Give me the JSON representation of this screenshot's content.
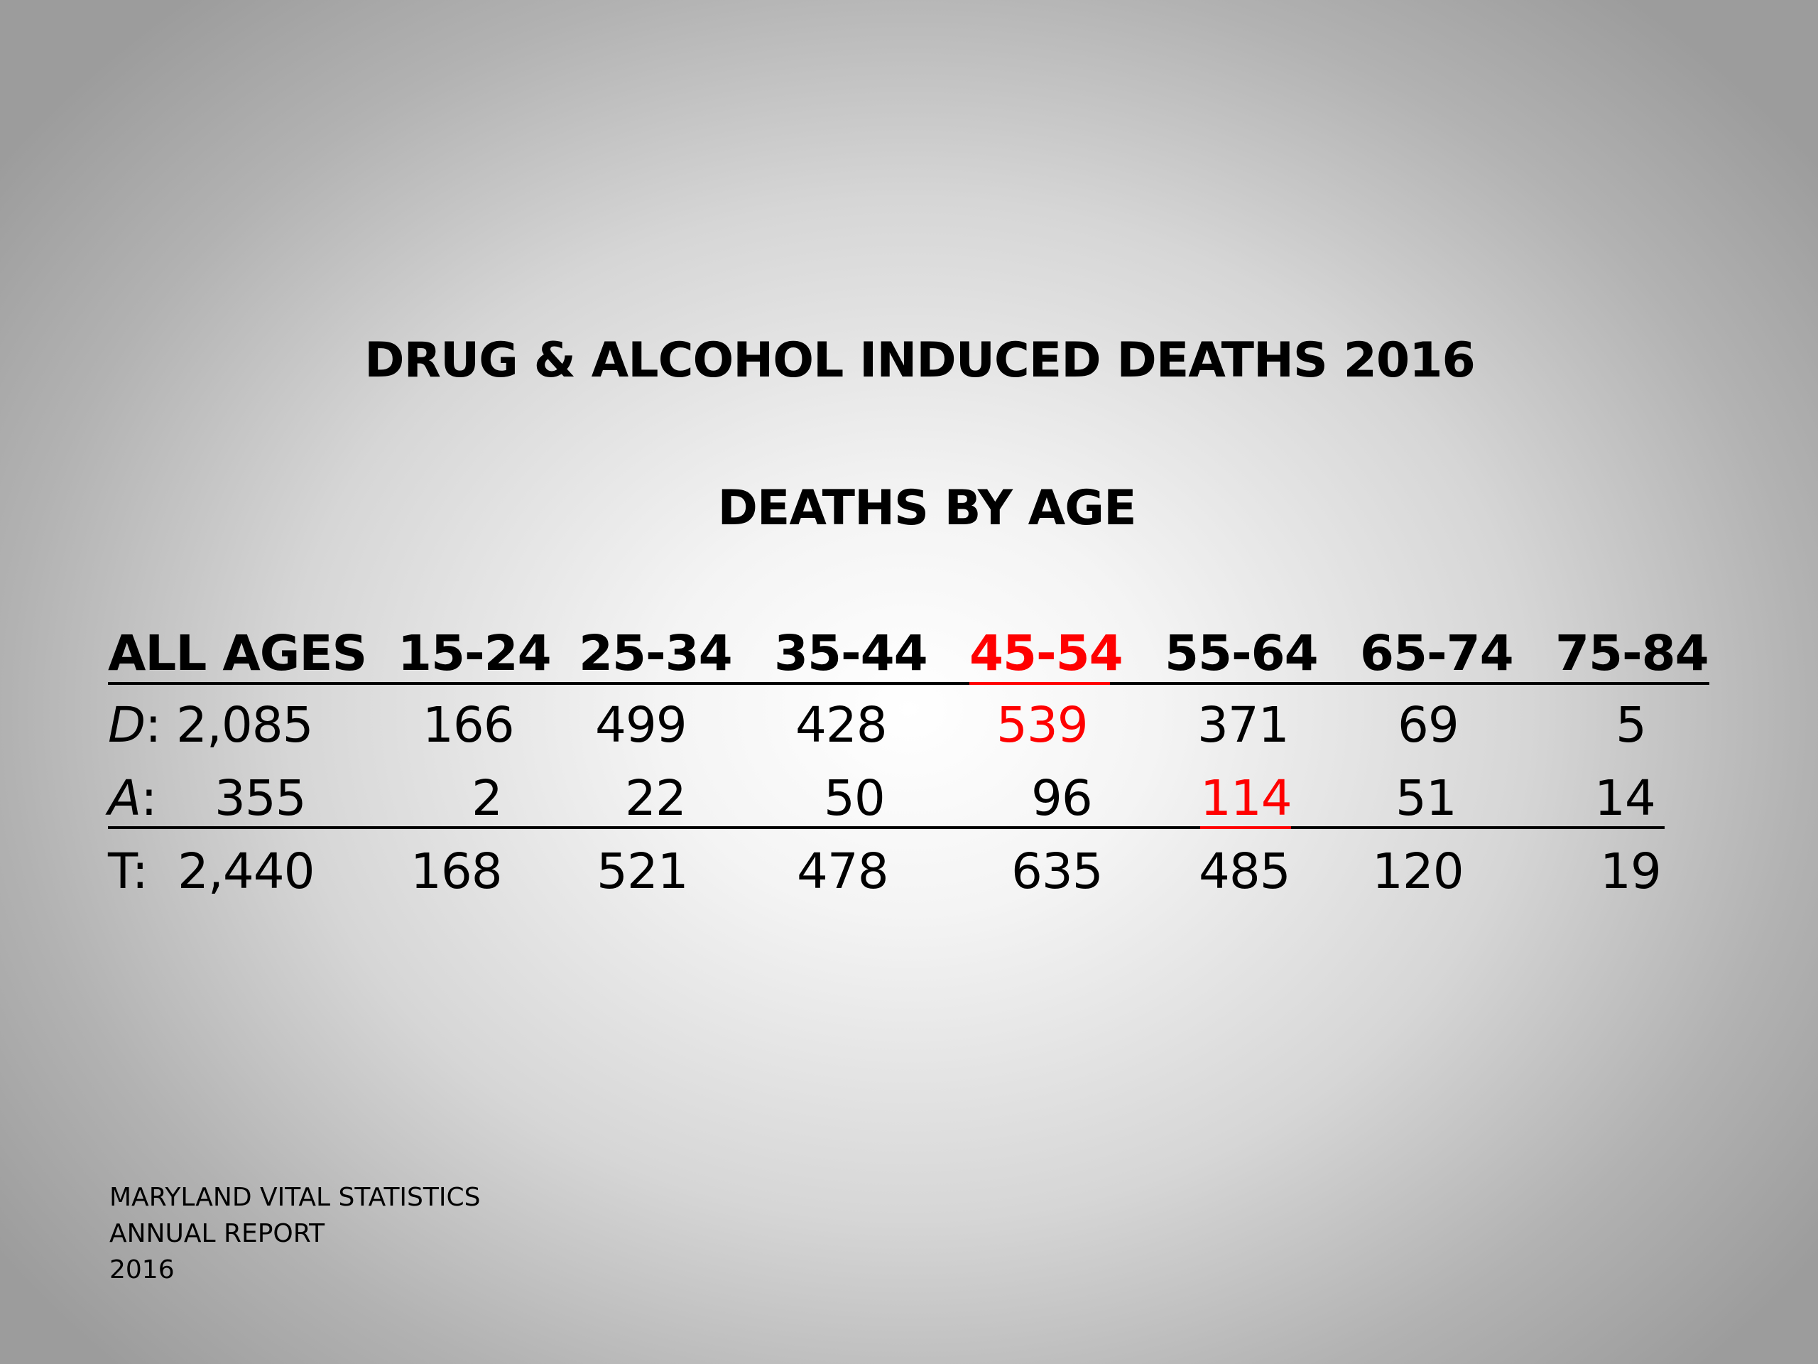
{
  "title": "DRUG & ALCOHOL INDUCED DEATHS 2016",
  "subtitle": "DEATHS BY AGE",
  "header": {
    "all_ages": "ALL AGES",
    "groups": [
      "15-24",
      "25-34",
      "35-44",
      "45-54",
      "55-64",
      "65-74",
      "75-84"
    ]
  },
  "rows": {
    "d": {
      "label": "D",
      "sep": ":",
      "total": "2,085",
      "values": [
        "166",
        "499",
        "428",
        "539",
        "371",
        "69",
        "5"
      ]
    },
    "a": {
      "label": "A",
      "sep": ":",
      "total": "355",
      "values": [
        "2",
        "22",
        "50",
        "96",
        "114",
        "51",
        "14"
      ]
    },
    "t": {
      "label": "T:",
      "total": "2,440",
      "values": [
        "168",
        "521",
        "478",
        "635",
        "485",
        "120",
        "19"
      ]
    }
  },
  "highlight_color": "#ff0000",
  "highlights": {
    "header_group": "45-54",
    "d_value": "539",
    "a_value": "114"
  },
  "footer": [
    "MARYLAND VITAL STATISTICS",
    "ANNUAL REPORT",
    "2016"
  ]
}
